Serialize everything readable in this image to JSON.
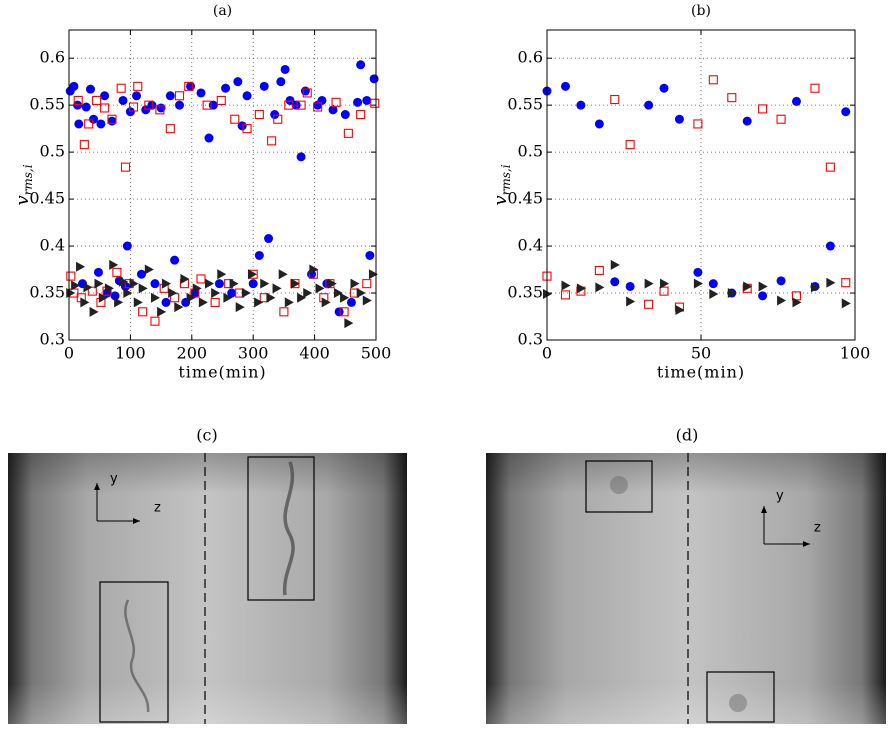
{
  "chart_data": [
    {
      "type": "scatter",
      "title": "(a)",
      "xlabel": "time(min)",
      "ylabel": {
        "symbol": "v",
        "subscript": "rms,i"
      },
      "xlim": [
        0,
        500
      ],
      "ylim": [
        0.3,
        0.63
      ],
      "xticks": [
        0,
        100,
        200,
        300,
        400,
        500
      ],
      "yticks": [
        0.3,
        0.35,
        0.4,
        0.45,
        0.5,
        0.55,
        0.6
      ],
      "grid": true,
      "series": [
        {
          "color": "#0000ff",
          "marker": "circle",
          "x": [
            2,
            8,
            14,
            16,
            22,
            28,
            35,
            40,
            48,
            52,
            58,
            62,
            70,
            75,
            82,
            88,
            92,
            95,
            100,
            110,
            118,
            125,
            135,
            140,
            150,
            158,
            165,
            172,
            180,
            190,
            198,
            205,
            215,
            228,
            235,
            245,
            255,
            265,
            275,
            282,
            290,
            300,
            310,
            318,
            325,
            335,
            345,
            352,
            360,
            370,
            378,
            385,
            395,
            405,
            412,
            420,
            430,
            440,
            450,
            460,
            470,
            475,
            485,
            490,
            497
          ],
          "values": [
            0.565,
            0.57,
            0.55,
            0.53,
            0.36,
            0.548,
            0.567,
            0.535,
            0.372,
            0.53,
            0.56,
            0.35,
            0.533,
            0.347,
            0.363,
            0.555,
            0.357,
            0.4,
            0.543,
            0.56,
            0.37,
            0.545,
            0.55,
            0.36,
            0.547,
            0.34,
            0.56,
            0.385,
            0.55,
            0.34,
            0.57,
            0.35,
            0.563,
            0.515,
            0.55,
            0.36,
            0.568,
            0.35,
            0.575,
            0.528,
            0.56,
            0.36,
            0.39,
            0.57,
            0.408,
            0.54,
            0.575,
            0.588,
            0.555,
            0.55,
            0.495,
            0.565,
            0.37,
            0.55,
            0.555,
            0.36,
            0.545,
            0.33,
            0.54,
            0.34,
            0.553,
            0.593,
            0.555,
            0.39,
            0.578
          ]
        },
        {
          "color": "#ff0000",
          "marker": "square",
          "x": [
            3,
            8,
            15,
            20,
            25,
            32,
            38,
            45,
            52,
            58,
            62,
            70,
            78,
            85,
            92,
            98,
            105,
            112,
            120,
            130,
            140,
            148,
            155,
            165,
            172,
            180,
            188,
            195,
            205,
            215,
            225,
            238,
            248,
            260,
            270,
            278,
            290,
            300,
            310,
            318,
            330,
            340,
            350,
            358,
            368,
            378,
            388,
            398,
            405,
            415,
            425,
            435,
            448,
            455,
            465,
            475,
            485,
            498
          ],
          "values": [
            0.368,
            0.35,
            0.555,
            0.345,
            0.508,
            0.53,
            0.352,
            0.555,
            0.34,
            0.547,
            0.352,
            0.535,
            0.372,
            0.568,
            0.484,
            0.36,
            0.548,
            0.57,
            0.33,
            0.55,
            0.32,
            0.545,
            0.355,
            0.525,
            0.345,
            0.56,
            0.36,
            0.57,
            0.35,
            0.365,
            0.55,
            0.34,
            0.555,
            0.36,
            0.535,
            0.35,
            0.525,
            0.37,
            0.54,
            0.345,
            0.512,
            0.535,
            0.33,
            0.55,
            0.36,
            0.55,
            0.563,
            0.37,
            0.548,
            0.345,
            0.36,
            0.553,
            0.33,
            0.52,
            0.35,
            0.54,
            0.36,
            0.552
          ]
        },
        {
          "color": "#222222",
          "marker": "triangle",
          "x": [
            2,
            10,
            18,
            25,
            30,
            40,
            48,
            55,
            65,
            72,
            80,
            88,
            95,
            105,
            112,
            120,
            130,
            140,
            150,
            158,
            168,
            178,
            188,
            198,
            208,
            218,
            228,
            238,
            248,
            258,
            268,
            278,
            288,
            298,
            308,
            318,
            328,
            338,
            348,
            358,
            368,
            378,
            388,
            398,
            408,
            418,
            428,
            438,
            448,
            455,
            465,
            475,
            485,
            495
          ],
          "values": [
            0.35,
            0.358,
            0.378,
            0.34,
            0.356,
            0.33,
            0.36,
            0.345,
            0.355,
            0.38,
            0.34,
            0.362,
            0.35,
            0.36,
            0.34,
            0.355,
            0.375,
            0.345,
            0.33,
            0.36,
            0.35,
            0.335,
            0.365,
            0.345,
            0.355,
            0.34,
            0.36,
            0.35,
            0.37,
            0.345,
            0.36,
            0.335,
            0.35,
            0.37,
            0.34,
            0.36,
            0.345,
            0.355,
            0.37,
            0.34,
            0.36,
            0.345,
            0.35,
            0.375,
            0.355,
            0.34,
            0.36,
            0.35,
            0.345,
            0.318,
            0.36,
            0.35,
            0.342,
            0.37
          ]
        }
      ]
    },
    {
      "type": "scatter",
      "title": "(b)",
      "xlabel": "time(min)",
      "ylabel": {
        "symbol": "v",
        "subscript": "rms,i"
      },
      "xlim": [
        0,
        100
      ],
      "ylim": [
        0.3,
        0.63
      ],
      "xticks": [
        0,
        50,
        100
      ],
      "yticks": [
        0.3,
        0.35,
        0.4,
        0.45,
        0.5,
        0.55,
        0.6
      ],
      "grid": true,
      "series": [
        {
          "color": "#0000ff",
          "marker": "circle",
          "x": [
            0,
            6,
            11,
            17,
            22,
            27,
            33,
            38,
            43,
            49,
            54,
            60,
            65,
            70,
            76,
            81,
            87,
            92,
            97
          ],
          "values": [
            0.565,
            0.57,
            0.55,
            0.53,
            0.362,
            0.357,
            0.55,
            0.568,
            0.535,
            0.372,
            0.36,
            0.35,
            0.533,
            0.347,
            0.363,
            0.554,
            0.357,
            0.4,
            0.543
          ]
        },
        {
          "color": "#ff0000",
          "marker": "square",
          "x": [
            0,
            6,
            11,
            17,
            22,
            27,
            33,
            38,
            43,
            49,
            54,
            60,
            65,
            70,
            76,
            81,
            87,
            92,
            97
          ],
          "values": [
            0.368,
            0.348,
            0.352,
            0.374,
            0.556,
            0.508,
            0.338,
            0.352,
            0.335,
            0.53,
            0.577,
            0.558,
            0.355,
            0.546,
            0.535,
            0.347,
            0.568,
            0.484,
            0.361
          ]
        },
        {
          "color": "#222222",
          "marker": "triangle",
          "x": [
            0,
            6,
            11,
            17,
            22,
            27,
            33,
            38,
            43,
            49,
            54,
            60,
            65,
            70,
            76,
            81,
            87,
            92,
            97
          ],
          "values": [
            0.349,
            0.358,
            0.355,
            0.356,
            0.38,
            0.341,
            0.36,
            0.36,
            0.332,
            0.36,
            0.349,
            0.35,
            0.357,
            0.357,
            0.342,
            0.34,
            0.356,
            0.361,
            0.339
          ]
        }
      ]
    }
  ],
  "images": [
    {
      "label": "(c)",
      "axis_y": "y",
      "axis_z": "z"
    },
    {
      "label": "(d)",
      "axis_y": "y",
      "axis_z": "z"
    }
  ]
}
